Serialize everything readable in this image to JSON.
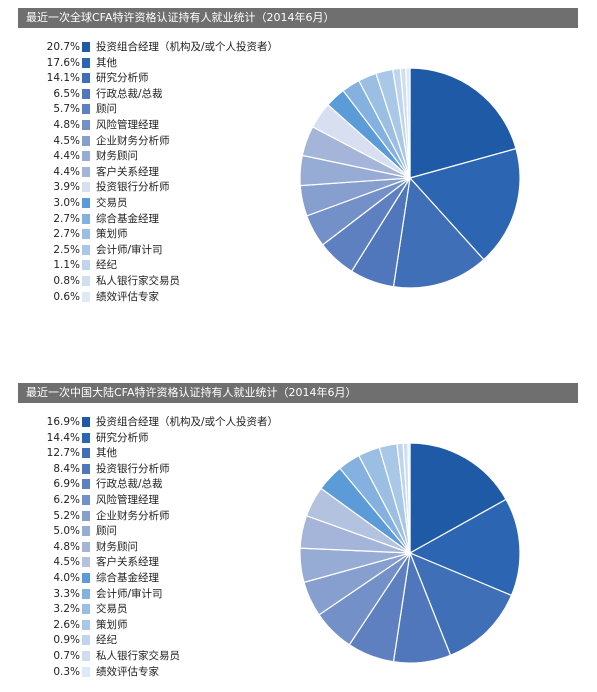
{
  "chart_data": [
    {
      "type": "pie",
      "title": "最近一次全球CFA特许资格认证持有人就业统计（2014年6月）",
      "categories": [
        "投资组合经理（机构及/或个人投资者）",
        "其他",
        "研究分析师",
        "行政总裁/总裁",
        "顾问",
        "风险管理经理",
        "企业财务分析师",
        "财务顾问",
        "客户关系经理",
        "投资银行分析师",
        "交易员",
        "综合基金经理",
        "策划师",
        "会计师/审计司",
        "经纪",
        "私人银行家交易员",
        "绩效评估专家"
      ],
      "values": [
        20.7,
        17.6,
        14.1,
        6.5,
        5.7,
        4.8,
        4.5,
        4.4,
        4.4,
        3.9,
        3.0,
        2.7,
        2.7,
        2.5,
        1.1,
        0.8,
        0.6
      ],
      "value_labels": [
        "20.7%",
        "17.6%",
        "14.1%",
        "6.5%",
        "5.7%",
        "4.8%",
        "4.5%",
        "4.4%",
        "4.4%",
        "3.9%",
        "3.0%",
        "2.7%",
        "2.7%",
        "2.5%",
        "1.1%",
        "0.8%",
        "0.6%"
      ],
      "colors": [
        "#1f5aa6",
        "#2c66b3",
        "#3f6fb6",
        "#5077bb",
        "#5e80c0",
        "#7390c8",
        "#869fcf",
        "#97acd5",
        "#a4b5d9",
        "#d8dff0",
        "#5a9bd8",
        "#84b1df",
        "#9bbfe3",
        "#a9c7e6",
        "#bed5ec",
        "#cedff1",
        "#dde9f6"
      ],
      "legend": "left"
    },
    {
      "type": "pie",
      "title": "最近一次中国大陆CFA特许资格认证持有人就业统计（2014年6月）",
      "categories": [
        "投资组合经理（机构及/或个人投资者）",
        "研究分析师",
        "其他",
        "投资银行分析师",
        "行政总裁/总裁",
        "风险管理经理",
        "企业财务分析师",
        "顾问",
        "财务顾问",
        "客户关系经理",
        "综合基金经理",
        "会计师/审计司",
        "交易员",
        "策划师",
        "经纪",
        "私人银行家交易员",
        "绩效评估专家"
      ],
      "values": [
        16.9,
        14.4,
        12.7,
        8.4,
        6.9,
        6.2,
        5.2,
        5.0,
        4.8,
        4.5,
        4.0,
        3.3,
        3.2,
        2.6,
        0.9,
        0.7,
        0.3
      ],
      "value_labels": [
        "16.9%",
        "14.4%",
        "12.7%",
        "8.4%",
        "6.9%",
        "6.2%",
        "5.2%",
        "5.0%",
        "4.8%",
        "4.5%",
        "4.0%",
        "3.3%",
        "3.2%",
        "2.6%",
        "0.9%",
        "0.7%",
        "0.3%"
      ],
      "colors": [
        "#1f5aa6",
        "#2c66b3",
        "#3f6fb6",
        "#5077bb",
        "#5e80c0",
        "#7390c8",
        "#869fcf",
        "#97acd5",
        "#a4b5d9",
        "#b3c2de",
        "#5a9bd8",
        "#84b1df",
        "#9bbfe3",
        "#a9c7e6",
        "#bed5ec",
        "#cedff1",
        "#dde9f6"
      ],
      "legend": "left"
    }
  ]
}
